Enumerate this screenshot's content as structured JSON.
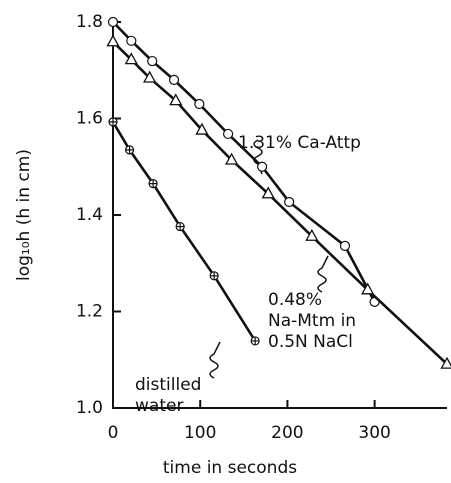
{
  "chart_data": {
    "type": "line",
    "xlabel": "time in seconds",
    "ylabel": "log₁₀h (h in cm)",
    "xlim": [
      0,
      383
    ],
    "ylim": [
      1,
      1.8
    ],
    "xticks": [
      0,
      100,
      200,
      300
    ],
    "yticks": [
      {
        "value": 1,
        "label": "1.0"
      },
      1.2,
      1.4,
      1.6,
      1.8
    ],
    "series": [
      {
        "marker": "circle",
        "color": "#111",
        "x": [
          0,
          21,
          45,
          70,
          99,
          132,
          171,
          202,
          266,
          300
        ],
        "values": [
          1.8,
          1.761,
          1.719,
          1.68,
          1.63,
          1.568,
          1.5,
          1.427,
          1.336,
          1.22
        ]
      },
      {
        "marker": "triangle",
        "color": "#111",
        "x": [
          0,
          21,
          42,
          72,
          102,
          136,
          178,
          228,
          292,
          383
        ],
        "values": [
          1.759,
          1.722,
          1.684,
          1.637,
          1.576,
          1.514,
          1.444,
          1.356,
          1.245,
          1.091
        ]
      },
      {
        "marker": "crossed-circle",
        "color": "#111",
        "x": [
          0,
          19,
          46,
          77,
          116,
          163
        ],
        "values": [
          1.593,
          1.535,
          1.465,
          1.376,
          1.274,
          1.139
        ]
      }
    ],
    "annotations": [
      {
        "lines": [
          "1.31% Ca-Attp"
        ]
      },
      {
        "lines": [
          "0.48%",
          "Na-Mtm in",
          "0.5N NaCl"
        ]
      },
      {
        "lines": [
          "distilled",
          "water"
        ]
      }
    ]
  }
}
